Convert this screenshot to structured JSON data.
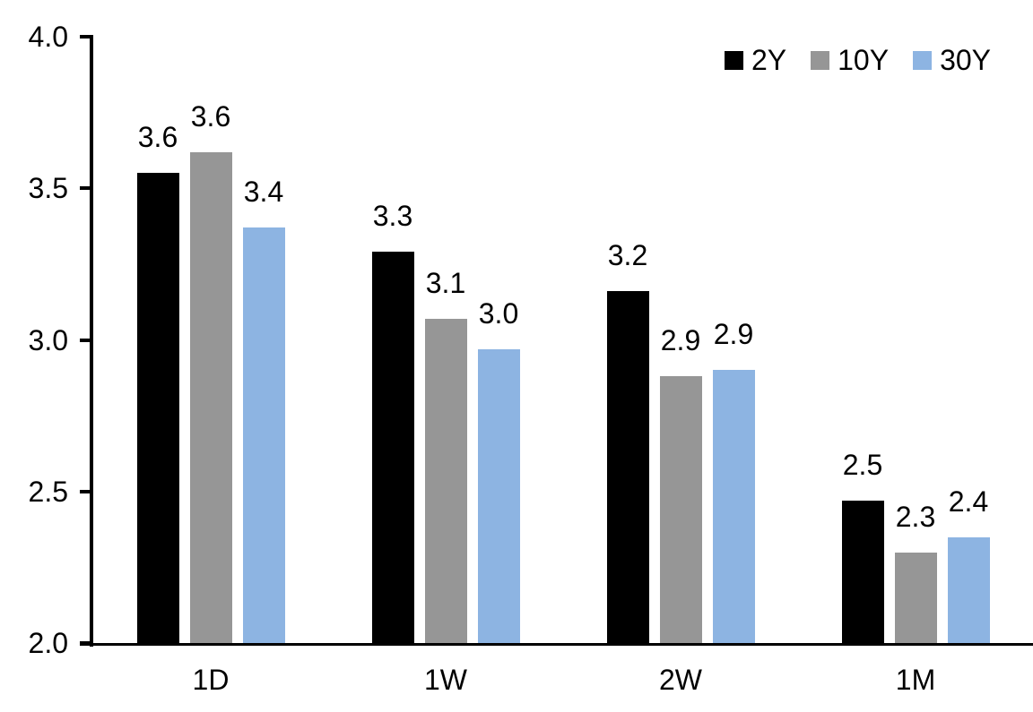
{
  "chart_data": {
    "type": "bar",
    "title": "",
    "xlabel": "",
    "ylabel": "",
    "categories": [
      "1D",
      "1W",
      "2W",
      "1M"
    ],
    "series": [
      {
        "name": "2Y",
        "color": "#000000",
        "values": [
          3.55,
          3.29,
          3.16,
          2.47
        ],
        "labels": [
          "3.6",
          "3.3",
          "3.2",
          "2.5"
        ]
      },
      {
        "name": "10Y",
        "color": "#969696",
        "values": [
          3.62,
          3.07,
          2.88,
          2.3
        ],
        "labels": [
          "3.6",
          "3.1",
          "2.9",
          "2.3"
        ]
      },
      {
        "name": "30Y",
        "color": "#8DB4E2",
        "values": [
          3.37,
          2.97,
          2.9,
          2.35
        ],
        "labels": [
          "3.4",
          "3.0",
          "2.9",
          "2.4"
        ]
      }
    ],
    "ylim": [
      2.0,
      4.0
    ],
    "yticks": [
      {
        "value": 4.0,
        "label": "4.0"
      },
      {
        "value": 3.5,
        "label": "3.5"
      },
      {
        "value": 3.0,
        "label": "3.0"
      },
      {
        "value": 2.5,
        "label": "2.5"
      },
      {
        "value": 2.0,
        "label": "2.0"
      }
    ],
    "grid": false,
    "legend_position": "top-right",
    "colors": {
      "background": "#ffffff",
      "axis": "#000000",
      "text": "#000000"
    }
  }
}
